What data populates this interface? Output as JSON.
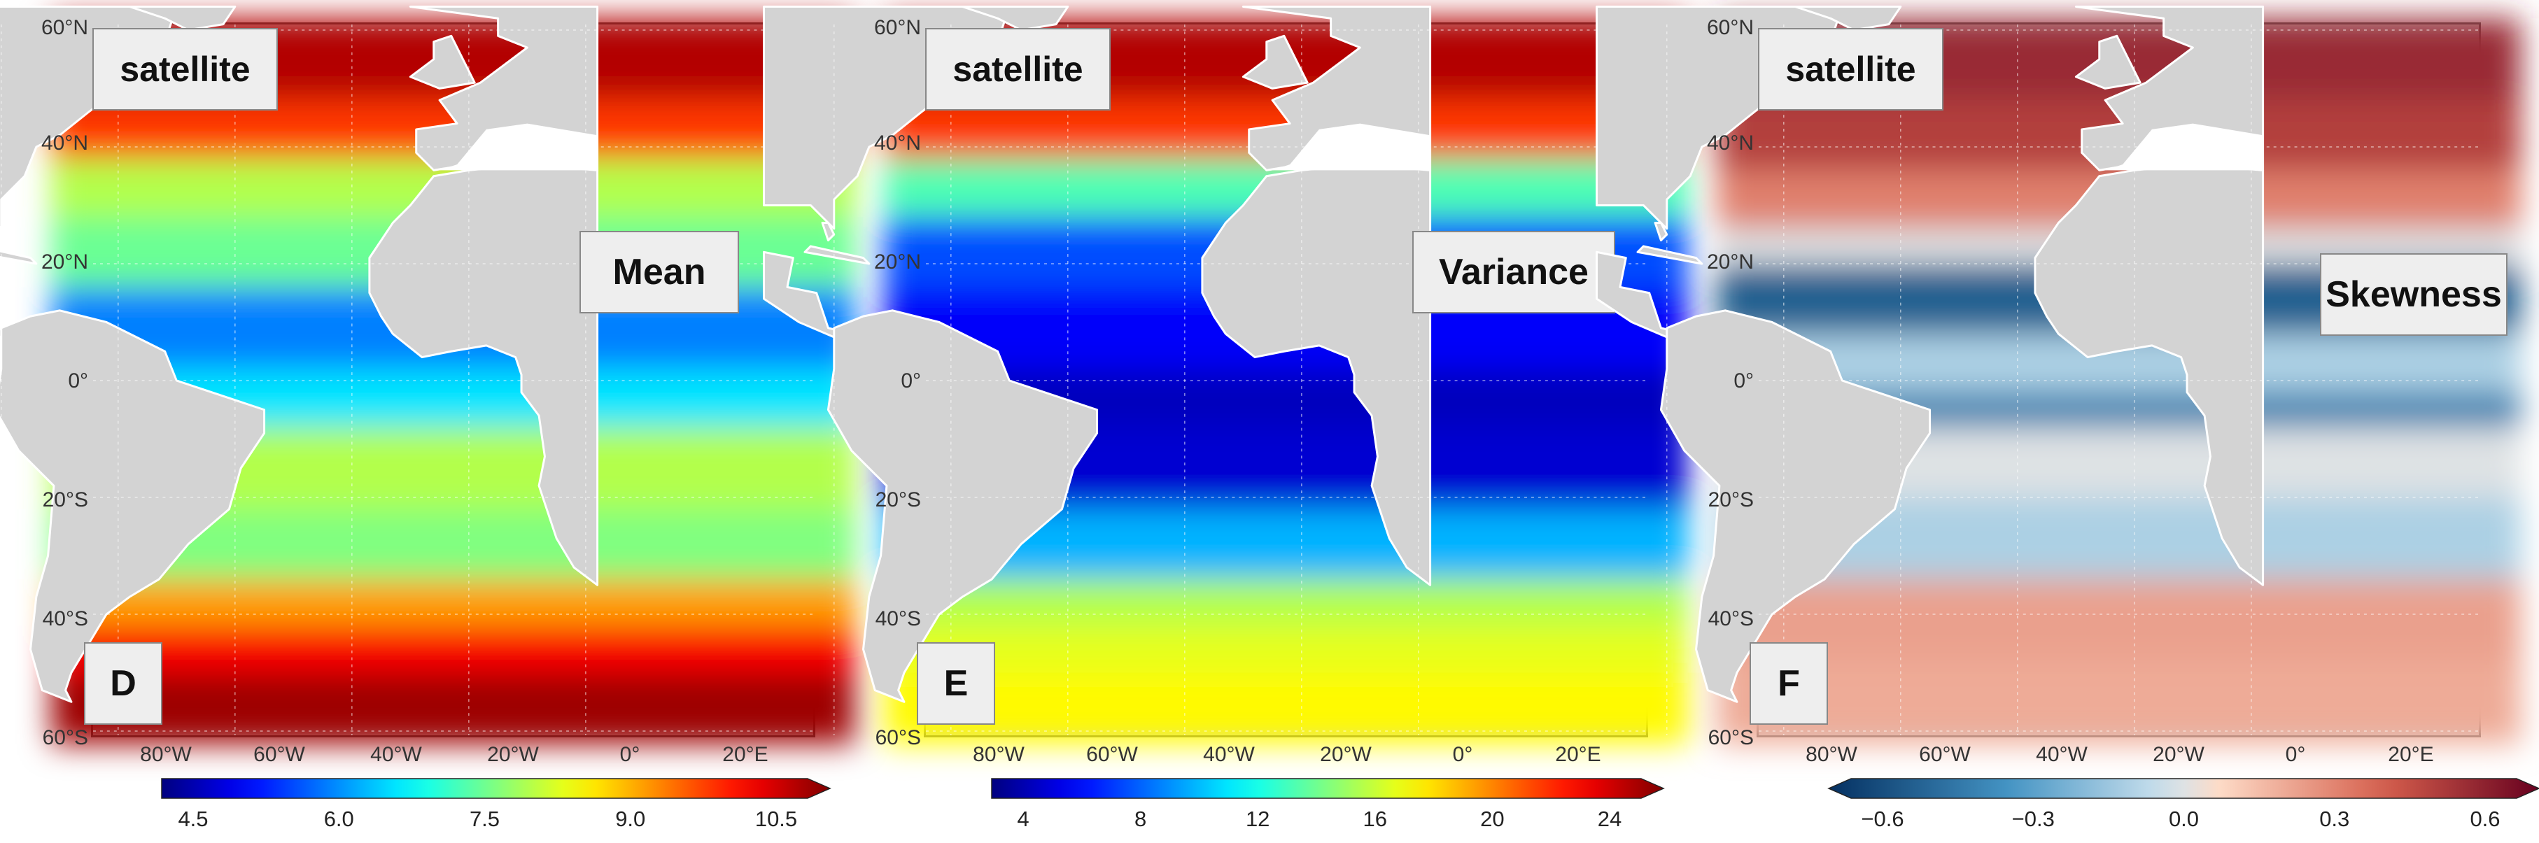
{
  "panels": [
    {
      "letter": "D",
      "source_label": "satellite",
      "statistic": "Mean",
      "colormap": "jet",
      "colorbar_ticks": [
        "4.5",
        "6.0",
        "7.5",
        "9.0",
        "10.5"
      ],
      "extend": "max"
    },
    {
      "letter": "E",
      "source_label": "satellite",
      "statistic": "Variance",
      "colormap": "jet",
      "colorbar_ticks": [
        "4",
        "8",
        "12",
        "16",
        "20",
        "24"
      ],
      "extend": "max"
    },
    {
      "letter": "F",
      "source_label": "satellite",
      "statistic": "Skewness",
      "colormap": "diverging-blue-white-red",
      "colorbar_ticks": [
        "−0.6",
        "−0.3",
        "0.0",
        "0.3",
        "0.6"
      ],
      "extend": "both"
    }
  ],
  "lat_labels": [
    "60°N",
    "40°N",
    "20°N",
    "0°",
    "20°S",
    "40°S",
    "60°S"
  ],
  "lon_labels": [
    "80°W",
    "60°W",
    "40°W",
    "20°W",
    "0°",
    "20°E"
  ],
  "colors": {
    "land": "#d3d3d3",
    "coast": "#ffffff",
    "frame": "#555555",
    "tag_bg": "#eeeeee"
  }
}
